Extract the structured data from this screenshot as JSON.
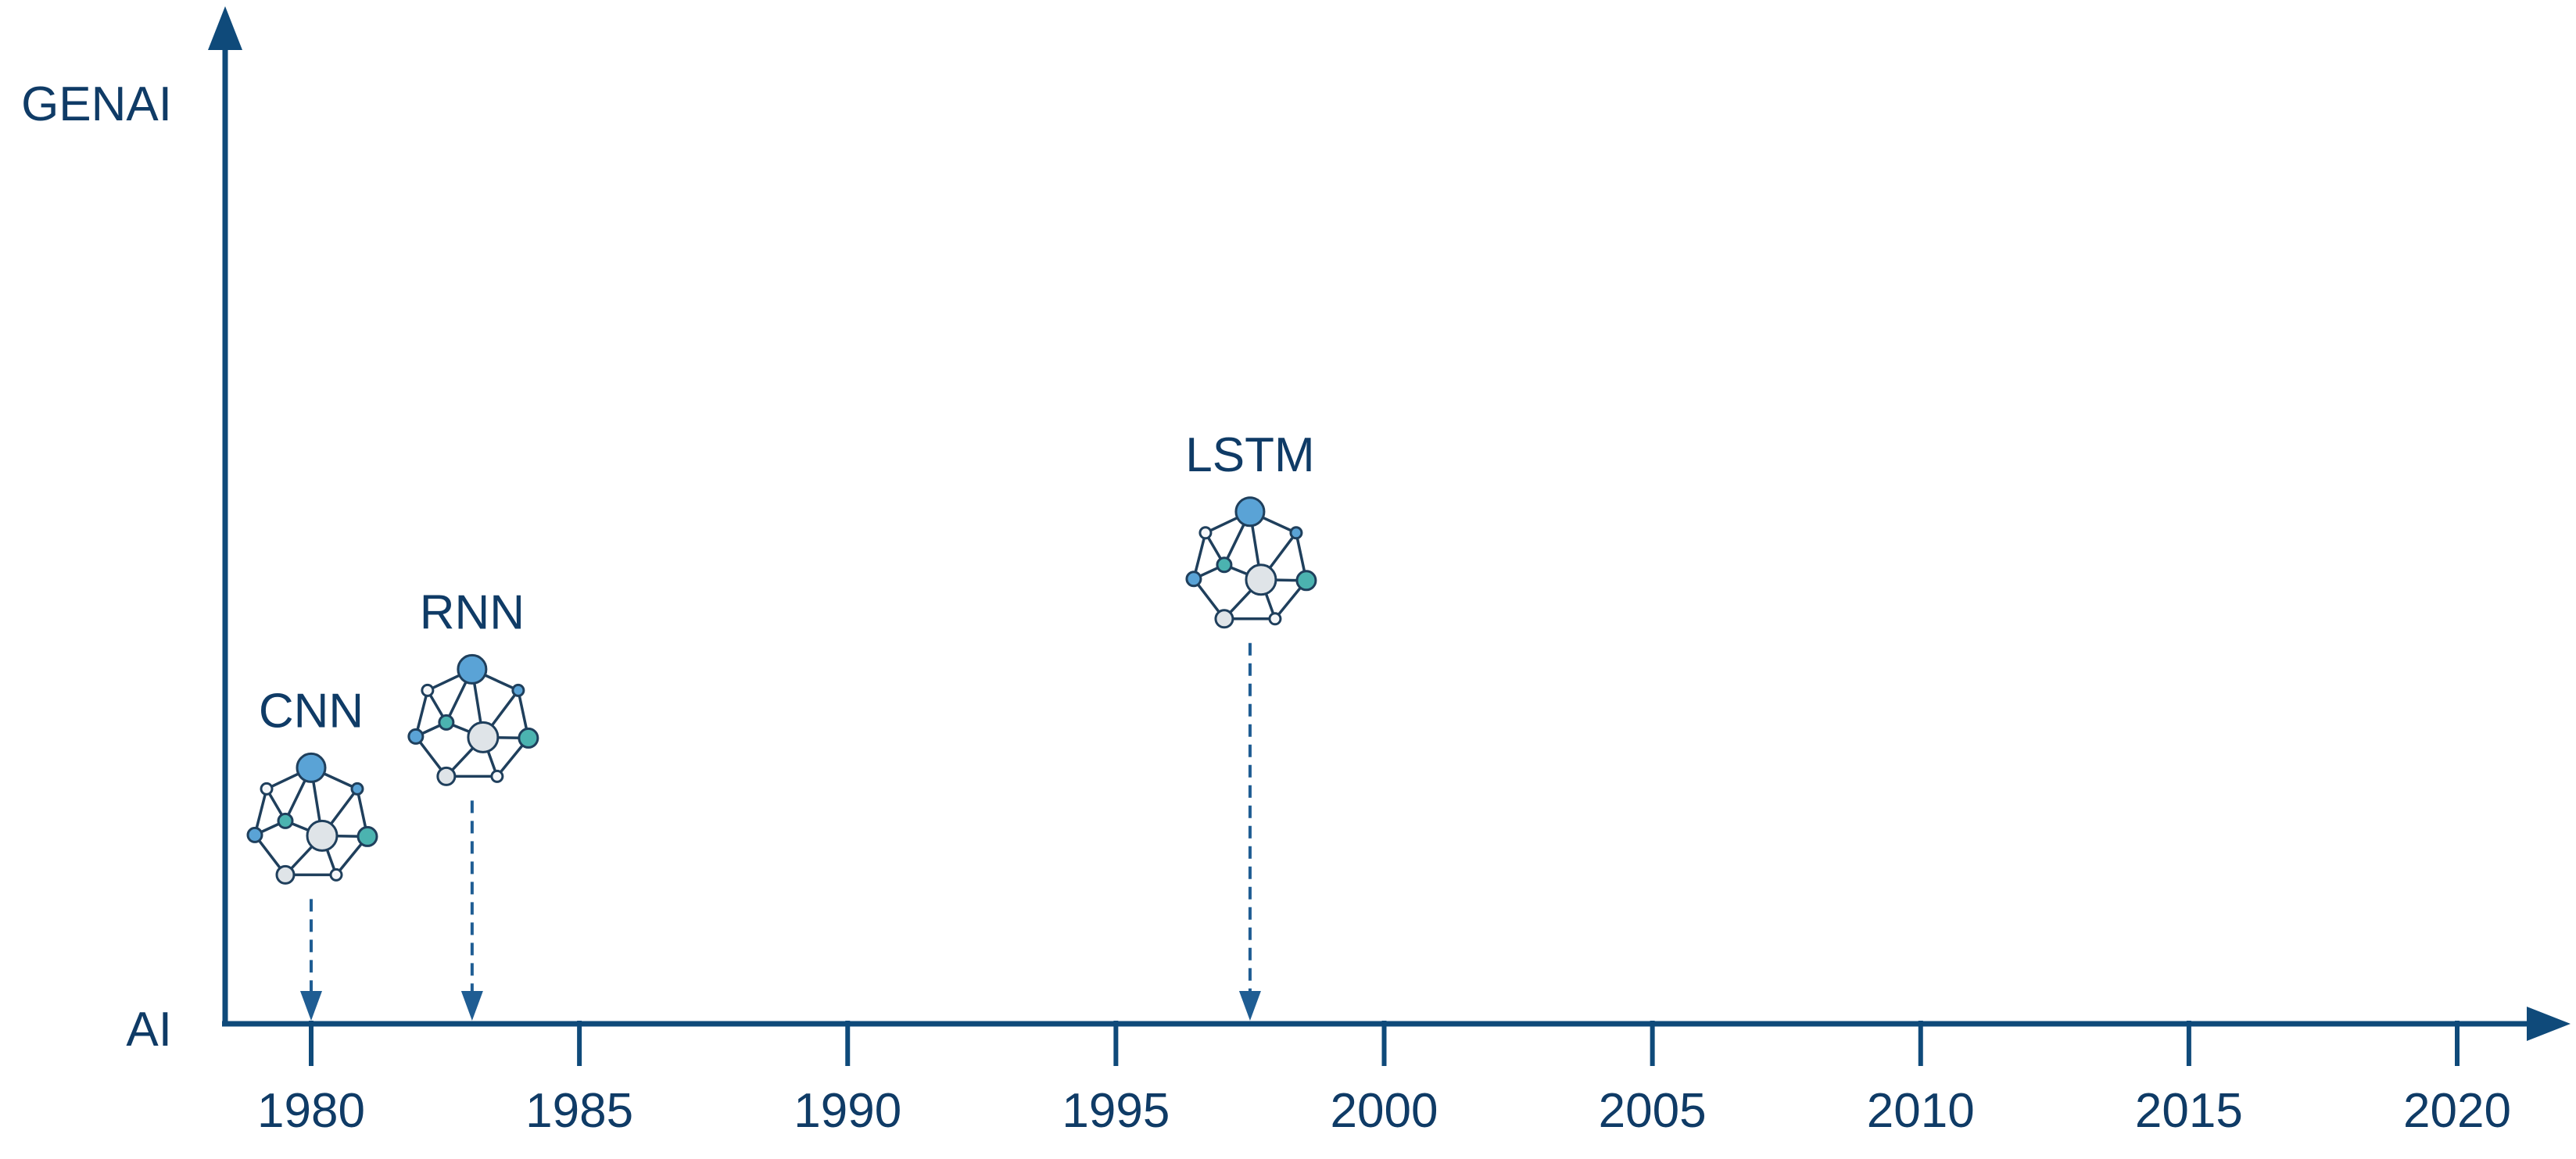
{
  "axes": {
    "y_top_label": "GENAI",
    "y_bottom_label": "AI",
    "x_ticks": [
      "1980",
      "1985",
      "1990",
      "1995",
      "2000",
      "2005",
      "2010",
      "2015",
      "2020"
    ]
  },
  "models": [
    {
      "id": "cnn",
      "label": "CNN",
      "year": 1980,
      "level": 0.26
    },
    {
      "id": "rnn",
      "label": "RNN",
      "year": 1983,
      "level": 0.36
    },
    {
      "id": "lstm",
      "label": "LSTM",
      "year": 1997.5,
      "level": 0.52
    }
  ],
  "colors": {
    "axis": "#0f4a7a",
    "text": "#0f3b66",
    "connector": "#1f5d93",
    "node_blue": "#5aa3d6",
    "node_teal": "#4bb3b0",
    "node_gray": "#dfe4e8",
    "node_white": "#f5f7f9"
  },
  "icons": {
    "model_icon": "neural-network-icon"
  }
}
